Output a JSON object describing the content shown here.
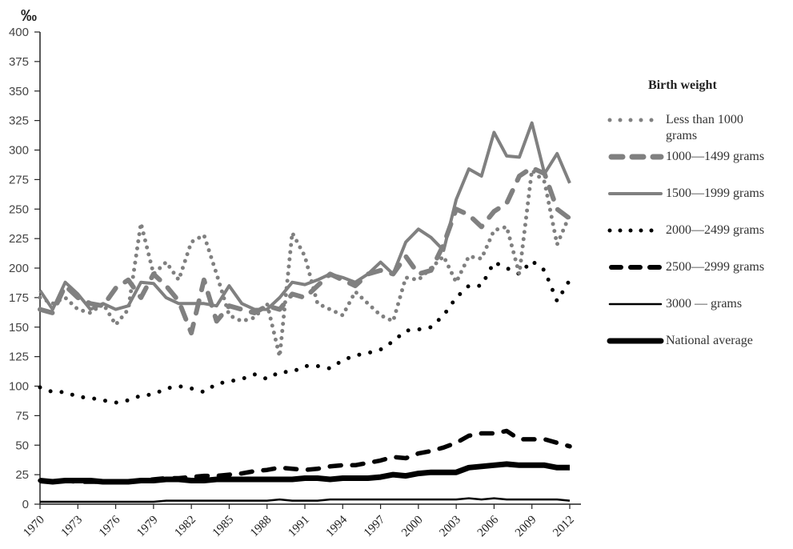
{
  "chart_data": {
    "type": "line",
    "title": "",
    "unit_label": "‰",
    "xlabel": "",
    "ylabel": "‰",
    "ylim": [
      0,
      400
    ],
    "yticks": [
      0,
      25,
      50,
      75,
      100,
      125,
      150,
      175,
      200,
      225,
      250,
      275,
      300,
      325,
      350,
      375,
      400
    ],
    "xticks": [
      1970,
      1973,
      1976,
      1979,
      1982,
      1985,
      1988,
      1991,
      1994,
      1997,
      2000,
      2003,
      2006,
      2009,
      2012
    ],
    "grid": false,
    "legend_title": "Birth weight",
    "legend_position": "right",
    "x": [
      1970,
      1971,
      1972,
      1973,
      1974,
      1975,
      1976,
      1977,
      1978,
      1979,
      1980,
      1981,
      1982,
      1983,
      1984,
      1985,
      1986,
      1987,
      1988,
      1989,
      1990,
      1991,
      1992,
      1993,
      1994,
      1995,
      1996,
      1997,
      1998,
      1999,
      2000,
      2001,
      2002,
      2003,
      2004,
      2005,
      2006,
      2007,
      2008,
      2009,
      2010,
      2011,
      2012
    ],
    "series": [
      {
        "name": "Less than 1000 grams",
        "style": "gray-dotted",
        "color": "#808080",
        "values": [
          175,
          170,
          175,
          165,
          162,
          170,
          152,
          165,
          238,
          195,
          205,
          190,
          222,
          228,
          195,
          160,
          155,
          158,
          170,
          125,
          230,
          210,
          170,
          165,
          160,
          180,
          170,
          160,
          155,
          192,
          190,
          200,
          210,
          188,
          210,
          208,
          232,
          235,
          195,
          283,
          273,
          220,
          245
        ]
      },
      {
        "name": "1000—1499 grams",
        "style": "gray-dashed",
        "color": "#808080",
        "values": [
          165,
          162,
          185,
          175,
          170,
          168,
          183,
          190,
          175,
          195,
          185,
          172,
          145,
          190,
          155,
          168,
          165,
          162,
          168,
          165,
          178,
          175,
          185,
          195,
          190,
          185,
          195,
          198,
          195,
          210,
          195,
          198,
          220,
          250,
          245,
          235,
          248,
          255,
          278,
          285,
          280,
          250,
          242
        ]
      },
      {
        "name": "1500—1999 grams",
        "style": "gray-solid",
        "color": "#808080",
        "values": [
          181,
          165,
          188,
          178,
          165,
          170,
          165,
          168,
          188,
          187,
          175,
          170,
          170,
          170,
          168,
          185,
          170,
          165,
          165,
          175,
          188,
          186,
          190,
          195,
          192,
          188,
          195,
          205,
          195,
          222,
          233,
          226,
          215,
          258,
          284,
          278,
          315,
          295,
          294,
          323,
          280,
          297,
          272
        ]
      },
      {
        "name": "2000—2499 grams",
        "style": "black-dotted",
        "color": "#000000",
        "values": [
          99,
          95,
          95,
          91,
          90,
          88,
          86,
          88,
          92,
          93,
          98,
          100,
          98,
          95,
          102,
          104,
          106,
          110,
          106,
          112,
          112,
          117,
          117,
          115,
          122,
          126,
          128,
          131,
          138,
          147,
          148,
          150,
          160,
          175,
          185,
          185,
          205,
          200,
          195,
          206,
          198,
          172,
          190
        ]
      },
      {
        "name": "2500—2999 grams",
        "style": "black-dashed",
        "color": "#000000",
        "values": [
          20,
          19,
          20,
          19,
          19,
          19,
          19,
          19,
          20,
          21,
          22,
          22,
          23,
          24,
          24,
          25,
          26,
          28,
          29,
          31,
          30,
          29,
          30,
          32,
          33,
          33,
          35,
          37,
          40,
          39,
          43,
          45,
          48,
          52,
          58,
          60,
          60,
          62,
          55,
          55,
          55,
          52,
          49
        ]
      },
      {
        "name": "3000 — grams",
        "style": "black-thin",
        "color": "#000000",
        "values": [
          2,
          2,
          2,
          2,
          2,
          2,
          2,
          2,
          2,
          2,
          3,
          3,
          3,
          3,
          3,
          3,
          3,
          3,
          3,
          4,
          3,
          3,
          3,
          4,
          4,
          4,
          4,
          4,
          4,
          4,
          4,
          4,
          4,
          4,
          5,
          4,
          5,
          4,
          4,
          4,
          4,
          4,
          3
        ]
      },
      {
        "name": "National average",
        "style": "black-thick",
        "color": "#000000",
        "values": [
          20,
          19,
          20,
          20,
          20,
          19,
          19,
          19,
          20,
          20,
          21,
          21,
          20,
          20,
          21,
          21,
          21,
          21,
          21,
          21,
          21,
          22,
          22,
          21,
          22,
          22,
          22,
          23,
          25,
          24,
          26,
          27,
          27,
          27,
          31,
          32,
          33,
          34,
          33,
          33,
          33,
          31,
          31
        ]
      }
    ]
  },
  "legend": {
    "title": "Birth weight",
    "items": [
      {
        "label": "Less than 1000",
        "label2": "grams"
      },
      {
        "label": "1000—1499 grams"
      },
      {
        "label": "1500—1999 grams"
      },
      {
        "label": "2000—2499 grams"
      },
      {
        "label": "2500—2999 grams"
      },
      {
        "label": "3000 — grams"
      },
      {
        "label": "National average"
      }
    ]
  }
}
